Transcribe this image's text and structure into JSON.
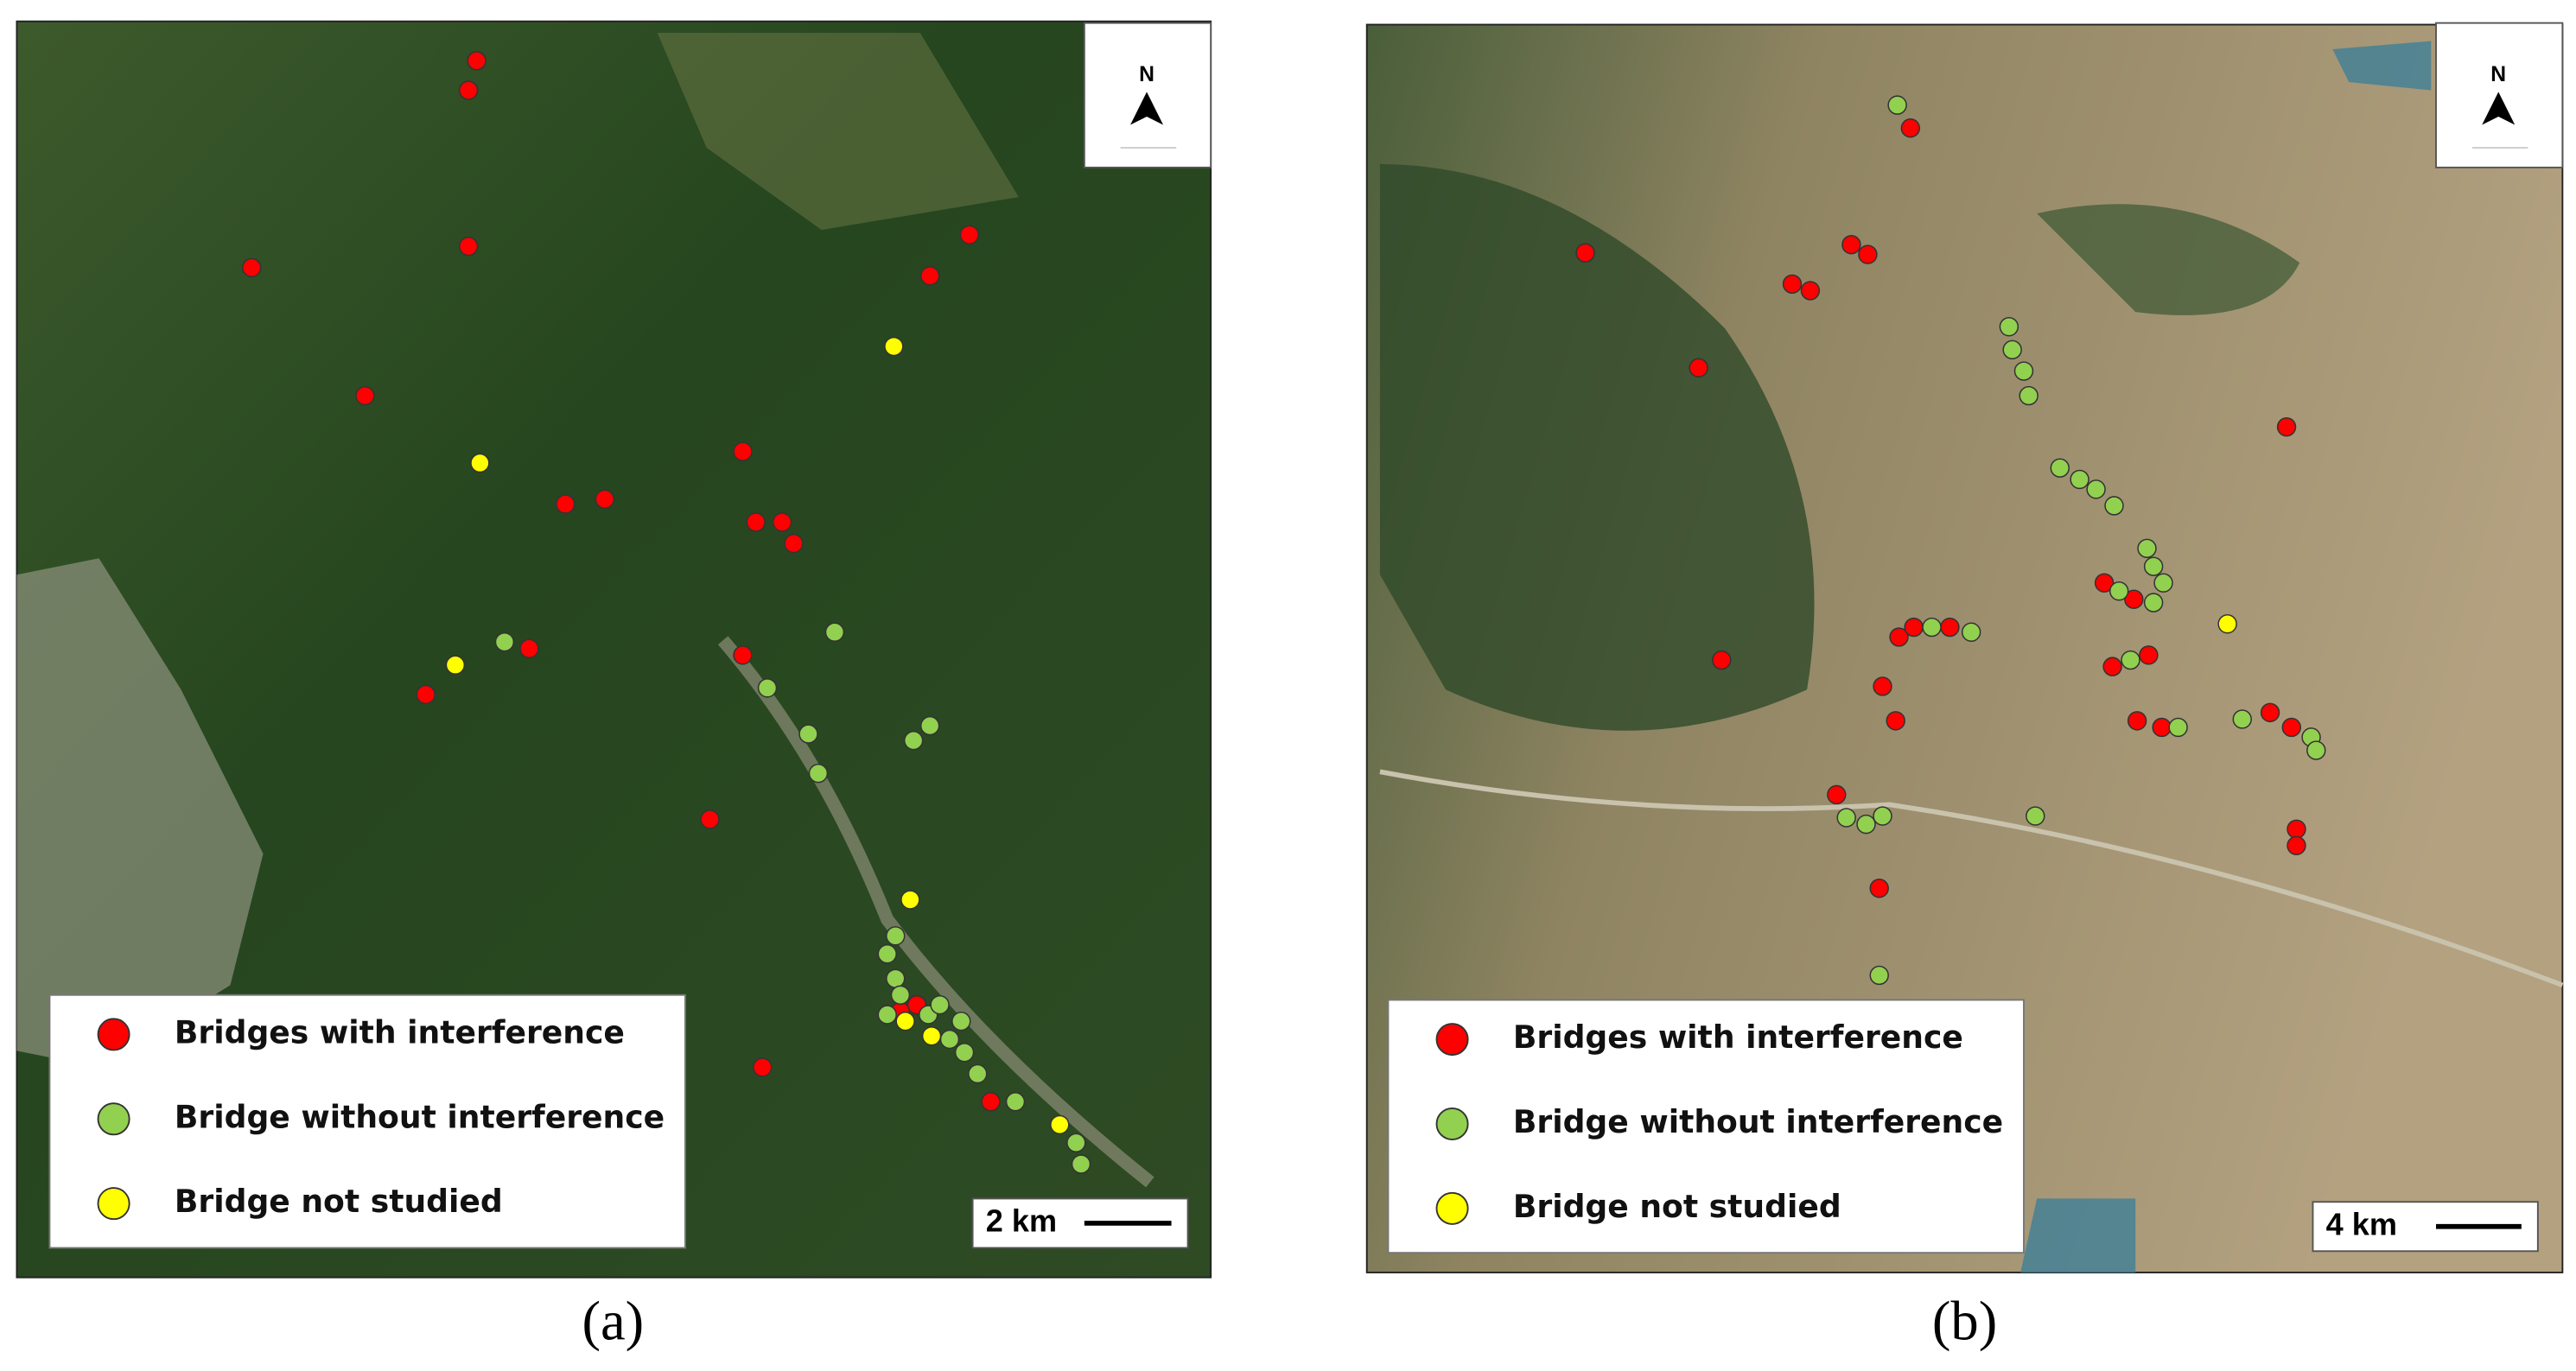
{
  "panels": [
    {
      "label": "(a)",
      "north": "N",
      "scale": "2 km",
      "legend": [
        {
          "label": "Bridges with interference",
          "color": "#ff0000"
        },
        {
          "label": "Bridge without interference",
          "color": "#92d050"
        },
        {
          "label": "Bridge not studied",
          "color": "#ffff00"
        }
      ]
    },
    {
      "label": "(b)",
      "north": "N",
      "scale": "4 km",
      "legend": [
        {
          "label": "Bridges with interference",
          "color": "#ff0000"
        },
        {
          "label": "Bridge without interference",
          "color": "#92d050"
        },
        {
          "label": "Bridge not studied",
          "color": "#ffff00"
        }
      ]
    }
  ]
}
